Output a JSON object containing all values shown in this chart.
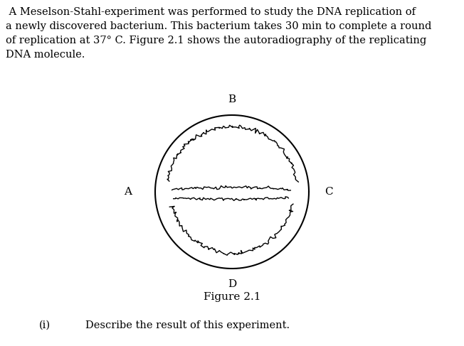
{
  "title_text": " A Meselson-Stahl-experiment was performed to study the DNA replication of\na newly discovered bacterium. This bacterium takes 30 min to complete a round\nof replication at 37° C. Figure 2.1 shows the autoradiography of the replicating\nDNA molecule.",
  "figure_label": "Figure 2.1",
  "label_A": "A",
  "label_B": "B",
  "label_C": "C",
  "label_D": "D",
  "question_label": "(i)",
  "question_text": "Describe the result of this experiment.",
  "background_color": "#ffffff",
  "font_size_body": 10.5,
  "font_size_labels": 11,
  "font_size_figure": 11
}
